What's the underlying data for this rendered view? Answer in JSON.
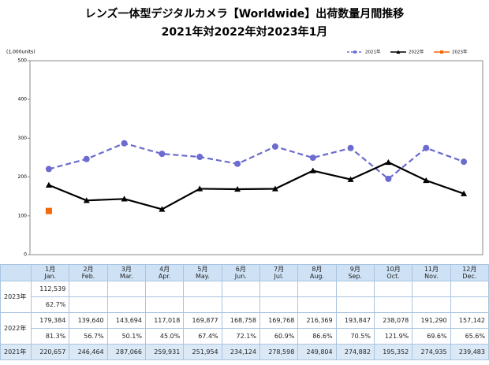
{
  "chart_data": {
    "type": "line",
    "title": "レンズ一体型デジタルカメラ【Worldwide】出荷数量月間推移",
    "subtitle": "2021年対2022年対2023年1月",
    "y_label": "(1,000units)",
    "categories": [
      "1月",
      "2月",
      "3月",
      "4月",
      "5月",
      "6月",
      "7月",
      "8月",
      "9月",
      "10月",
      "11月",
      "12月"
    ],
    "categories_en": [
      "Jan.",
      "Feb.",
      "Mar.",
      "Apr.",
      "May.",
      "Jun.",
      "Jul.",
      "Aug.",
      "Sep.",
      "Oct.",
      "Nov.",
      "Dec."
    ],
    "ylim": [
      0,
      500
    ],
    "yticks": [
      0,
      100,
      200,
      300,
      400,
      500
    ],
    "grid": false,
    "legend": "top-right",
    "series": [
      {
        "name": "2021年",
        "color": "#6b6bd0",
        "dash": true,
        "marker": "circle",
        "values": [
          220.657,
          246.464,
          287.066,
          259.931,
          251.954,
          234.124,
          278.598,
          249.804,
          274.882,
          195.352,
          274.935,
          239.483
        ]
      },
      {
        "name": "2022年",
        "color": "#000000",
        "dash": false,
        "marker": "triangle",
        "values": [
          179.384,
          139.64,
          143.694,
          117.018,
          169.877,
          168.758,
          169.768,
          216.369,
          193.847,
          238.078,
          191.29,
          157.142
        ]
      },
      {
        "name": "2023年",
        "color": "#f26a0a",
        "dash": false,
        "marker": "square",
        "values": [
          112.539,
          null,
          null,
          null,
          null,
          null,
          null,
          null,
          null,
          null,
          null,
          null
        ]
      }
    ]
  },
  "table": {
    "rows": [
      {
        "label": "2023年",
        "values": [
          "112,539"
        ],
        "ratios": [
          "62.7%"
        ]
      },
      {
        "label": "2022年",
        "values": [
          "179,384",
          "139,640",
          "143,694",
          "117,018",
          "169,877",
          "168,758",
          "169,768",
          "216,369",
          "193,847",
          "238,078",
          "191,290",
          "157,142"
        ],
        "ratios": [
          "81.3%",
          "56.7%",
          "50.1%",
          "45.0%",
          "67.4%",
          "72.1%",
          "60.9%",
          "86.6%",
          "70.5%",
          "121.9%",
          "69.6%",
          "65.6%"
        ]
      },
      {
        "label": "2021年",
        "values": [
          "220,657",
          "246,464",
          "287,066",
          "259,931",
          "251,954",
          "234,124",
          "278,598",
          "249,804",
          "274,882",
          "195,352",
          "274,935",
          "239,483"
        ]
      }
    ]
  }
}
